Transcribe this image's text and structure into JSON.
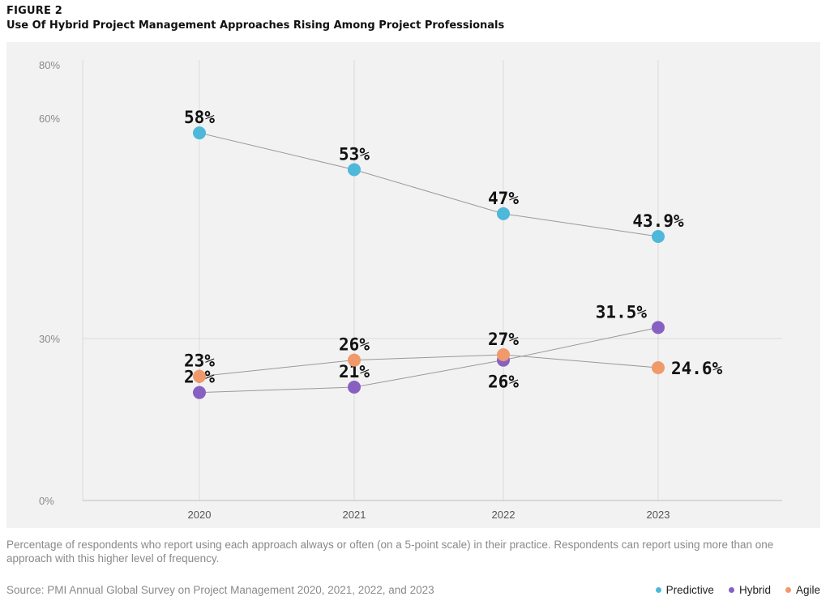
{
  "header": {
    "figure_label": "FIGURE 2",
    "title": "Use Of Hybrid Project Management Approaches Rising Among Project Professionals"
  },
  "footer": {
    "note": "Percentage of respondents who report using each approach always or often (on a 5-point scale) in their practice. Respondents can report using more than one approach with this higher level of frequency.",
    "source": "Source: PMI Annual Global Survey on Project Management 2020, 2021, 2022, and 2023"
  },
  "colors": {
    "predictive": "#4db8d9",
    "hybrid": "#8760c2",
    "agile": "#f0996a",
    "panel": "#f2f2f2",
    "grid": "#d9d9d9",
    "line": "#999999"
  },
  "chart_data": {
    "type": "line",
    "categories": [
      "2020",
      "2021",
      "2022",
      "2023"
    ],
    "y_ticks": [
      "0%",
      "30%",
      "60%",
      "80%"
    ],
    "grid": true,
    "legend_position": "bottom-right",
    "series": [
      {
        "name": "Predictive",
        "values": [
          58,
          53,
          47,
          43.9
        ],
        "labels": [
          "58%",
          "53%",
          "47%",
          "43.9%"
        ]
      },
      {
        "name": "Hybrid",
        "values": [
          20,
          21,
          26,
          31.5
        ],
        "labels": [
          "20%",
          "21%",
          "26%",
          "31.5%"
        ]
      },
      {
        "name": "Agile",
        "values": [
          23,
          26,
          27,
          24.6
        ],
        "labels": [
          "23%",
          "26%",
          "27%",
          "24.6%"
        ]
      }
    ]
  }
}
